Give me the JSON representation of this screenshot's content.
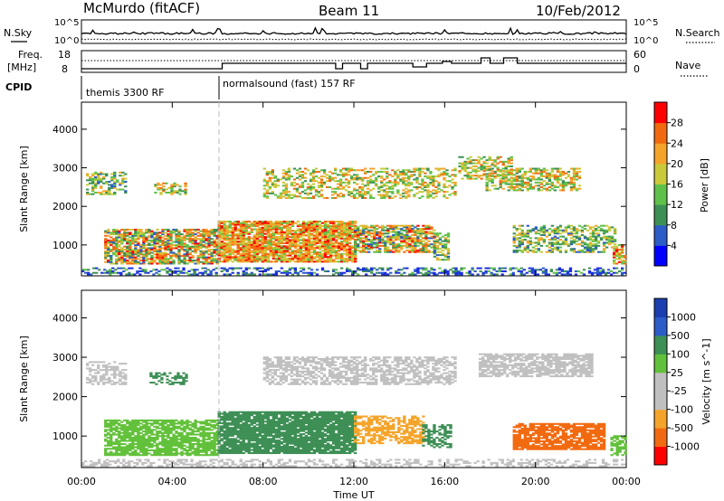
{
  "header": {
    "station": "McMurdo (fitACF)",
    "beam": "Beam 11",
    "date": "10/Feb/2012"
  },
  "top_panels": {
    "nsky_label": "N.Sky",
    "nsearch_label": "N.Search",
    "nsky_ticks": [
      "10^5",
      "10^0"
    ],
    "nsearch_ticks": [
      "10^5",
      "10^0"
    ],
    "freq_label_1": "Freq.",
    "freq_label_2": "[MHz]",
    "freq_ticks": [
      "18",
      "8"
    ],
    "nave_label": "Nave",
    "nave_ticks": [
      "60",
      "0"
    ],
    "cpid_label": "CPID",
    "cpid_segments": [
      "themis 3300 RF",
      "normalsound (fast) 157 RF"
    ]
  },
  "chart_data": [
    {
      "type": "heatmap",
      "title": "",
      "xlabel": "Time UT",
      "ylabel": "Slant Range [km]",
      "colorbar_label": "Power [dB]",
      "colorbar_ticks": [
        "28",
        "24",
        "20",
        "16",
        "12",
        "8",
        "4"
      ],
      "colorbar_colors": [
        "#0000ff",
        "#2b5cc7",
        "#3d8f55",
        "#5fc14a",
        "#c9c93a",
        "#f4a42a",
        "#f26a10",
        "#ff0000"
      ],
      "yticks": [
        "1000",
        "2000",
        "3000",
        "4000"
      ],
      "ylim": [
        200,
        4700
      ],
      "xticks": [
        "00:00",
        "04:00",
        "08:00",
        "12:00",
        "16:00",
        "20:00",
        "00:00"
      ],
      "xlim_hours": [
        0,
        24
      ]
    },
    {
      "type": "heatmap",
      "title": "",
      "xlabel": "Time UT",
      "ylabel": "Slant Range [km]",
      "colorbar_label": "Velocity [m s^-1]",
      "colorbar_ticks": [
        "1000",
        "500",
        "100",
        "25",
        "-25",
        "-100",
        "-500",
        "-1000"
      ],
      "colorbar_colors": [
        "#ff0000",
        "#f26a10",
        "#f4a42a",
        "#c0c0c0",
        "#c0c0c0",
        "#62c13a",
        "#3d8f55",
        "#2b5cc7",
        "#1b3fb0"
      ],
      "yticks": [
        "1000",
        "2000",
        "3000",
        "4000"
      ],
      "ylim": [
        200,
        4700
      ],
      "xticks": [
        "00:00",
        "04:00",
        "08:00",
        "12:00",
        "16:00",
        "20:00",
        "00:00"
      ],
      "xlim_hours": [
        0,
        24
      ]
    }
  ]
}
